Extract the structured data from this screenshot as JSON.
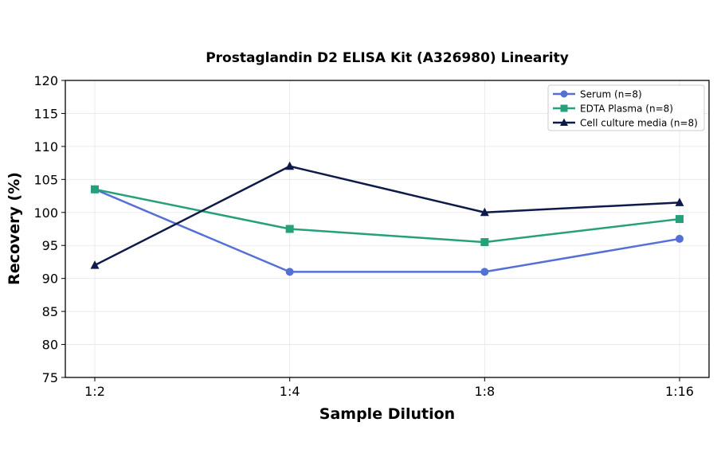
{
  "chart_data": {
    "type": "line",
    "title": "Prostaglandin D2 ELISA Kit (A326980) Linearity",
    "xlabel": "Sample Dilution",
    "ylabel": "Recovery (%)",
    "categories": [
      "1:2",
      "1:4",
      "1:8",
      "1:16"
    ],
    "ylim": [
      75,
      120
    ],
    "yticks": [
      75,
      80,
      85,
      90,
      95,
      100,
      105,
      110,
      115,
      120
    ],
    "grid": true,
    "legend_position": "top-right",
    "series": [
      {
        "name": "Serum (n=8)",
        "values": [
          103.5,
          91,
          91,
          96
        ],
        "color": "#5470d6",
        "marker": "circle"
      },
      {
        "name": "EDTA Plasma (n=8)",
        "values": [
          103.5,
          97.5,
          95.5,
          99
        ],
        "color": "#26a07a",
        "marker": "square"
      },
      {
        "name": "Cell culture media (n=8)",
        "values": [
          92,
          107,
          100,
          101.5
        ],
        "color": "#0d1a4a",
        "marker": "triangle"
      }
    ]
  }
}
